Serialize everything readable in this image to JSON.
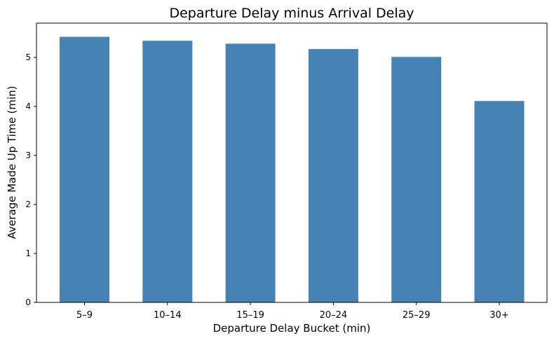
{
  "chart_data": {
    "type": "bar",
    "title": "Departure Delay minus Arrival Delay",
    "xlabel": "Departure Delay Bucket (min)",
    "ylabel": "Average Made Up Time (min)",
    "categories": [
      "5–9",
      "10–14",
      "15–19",
      "20–24",
      "25–29",
      "30+"
    ],
    "values": [
      5.42,
      5.34,
      5.28,
      5.17,
      5.01,
      4.11
    ],
    "yticks": [
      0,
      1,
      2,
      3,
      4,
      5
    ],
    "ylim": [
      0,
      5.7
    ],
    "bar_color": "#4682b4",
    "grid": false,
    "legend": "none",
    "zero_line": "dashed"
  }
}
